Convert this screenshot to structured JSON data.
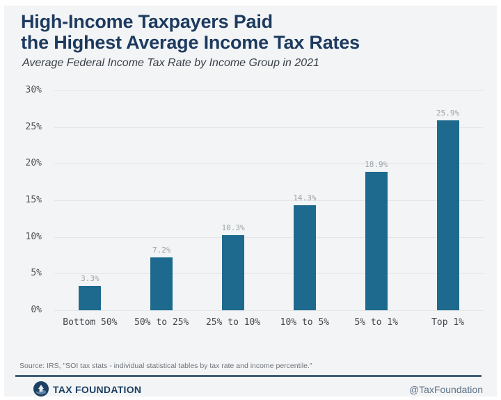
{
  "title": {
    "line1": "High-Income Taxpayers Paid",
    "line2": "the Highest Average Income Tax Rates"
  },
  "subtitle": "Average Federal Income Tax Rate by Income Group in 2021",
  "chart_data": {
    "type": "bar",
    "categories": [
      "Bottom 50%",
      "50% to 25%",
      "25% to 10%",
      "10% to 5%",
      "5% to 1%",
      "Top 1%"
    ],
    "values": [
      3.3,
      7.2,
      10.3,
      14.3,
      18.9,
      25.9
    ],
    "value_labels": [
      "3.3%",
      "7.2%",
      "10.3%",
      "14.3%",
      "18.9%",
      "25.9%"
    ],
    "title": "High-Income Taxpayers Paid the Highest Average Income Tax Rates",
    "subtitle": "Average Federal Income Tax Rate by Income Group in 2021",
    "xlabel": "",
    "ylabel": "",
    "ylim": [
      0,
      30
    ],
    "ytick_step": 5,
    "ytick_labels": [
      "0%",
      "5%",
      "10%",
      "15%",
      "20%",
      "25%",
      "30%"
    ],
    "grid": true,
    "legend": "none",
    "bar_color": "#1e6a8e"
  },
  "source": "Source: IRS, \"SOI tax stats - individual statistical tables by tax rate and income percentile.\"",
  "footer": {
    "brand": "TAX FOUNDATION",
    "handle": "@TaxFoundation"
  },
  "colors": {
    "accent_navy": "#1d3a5f",
    "bar": "#1e6a8e",
    "panel_bg": "#f2f4f5",
    "gridline": "#e3e5e7",
    "divider": "#3f5d7a",
    "value_label": "#9ba1a7"
  }
}
